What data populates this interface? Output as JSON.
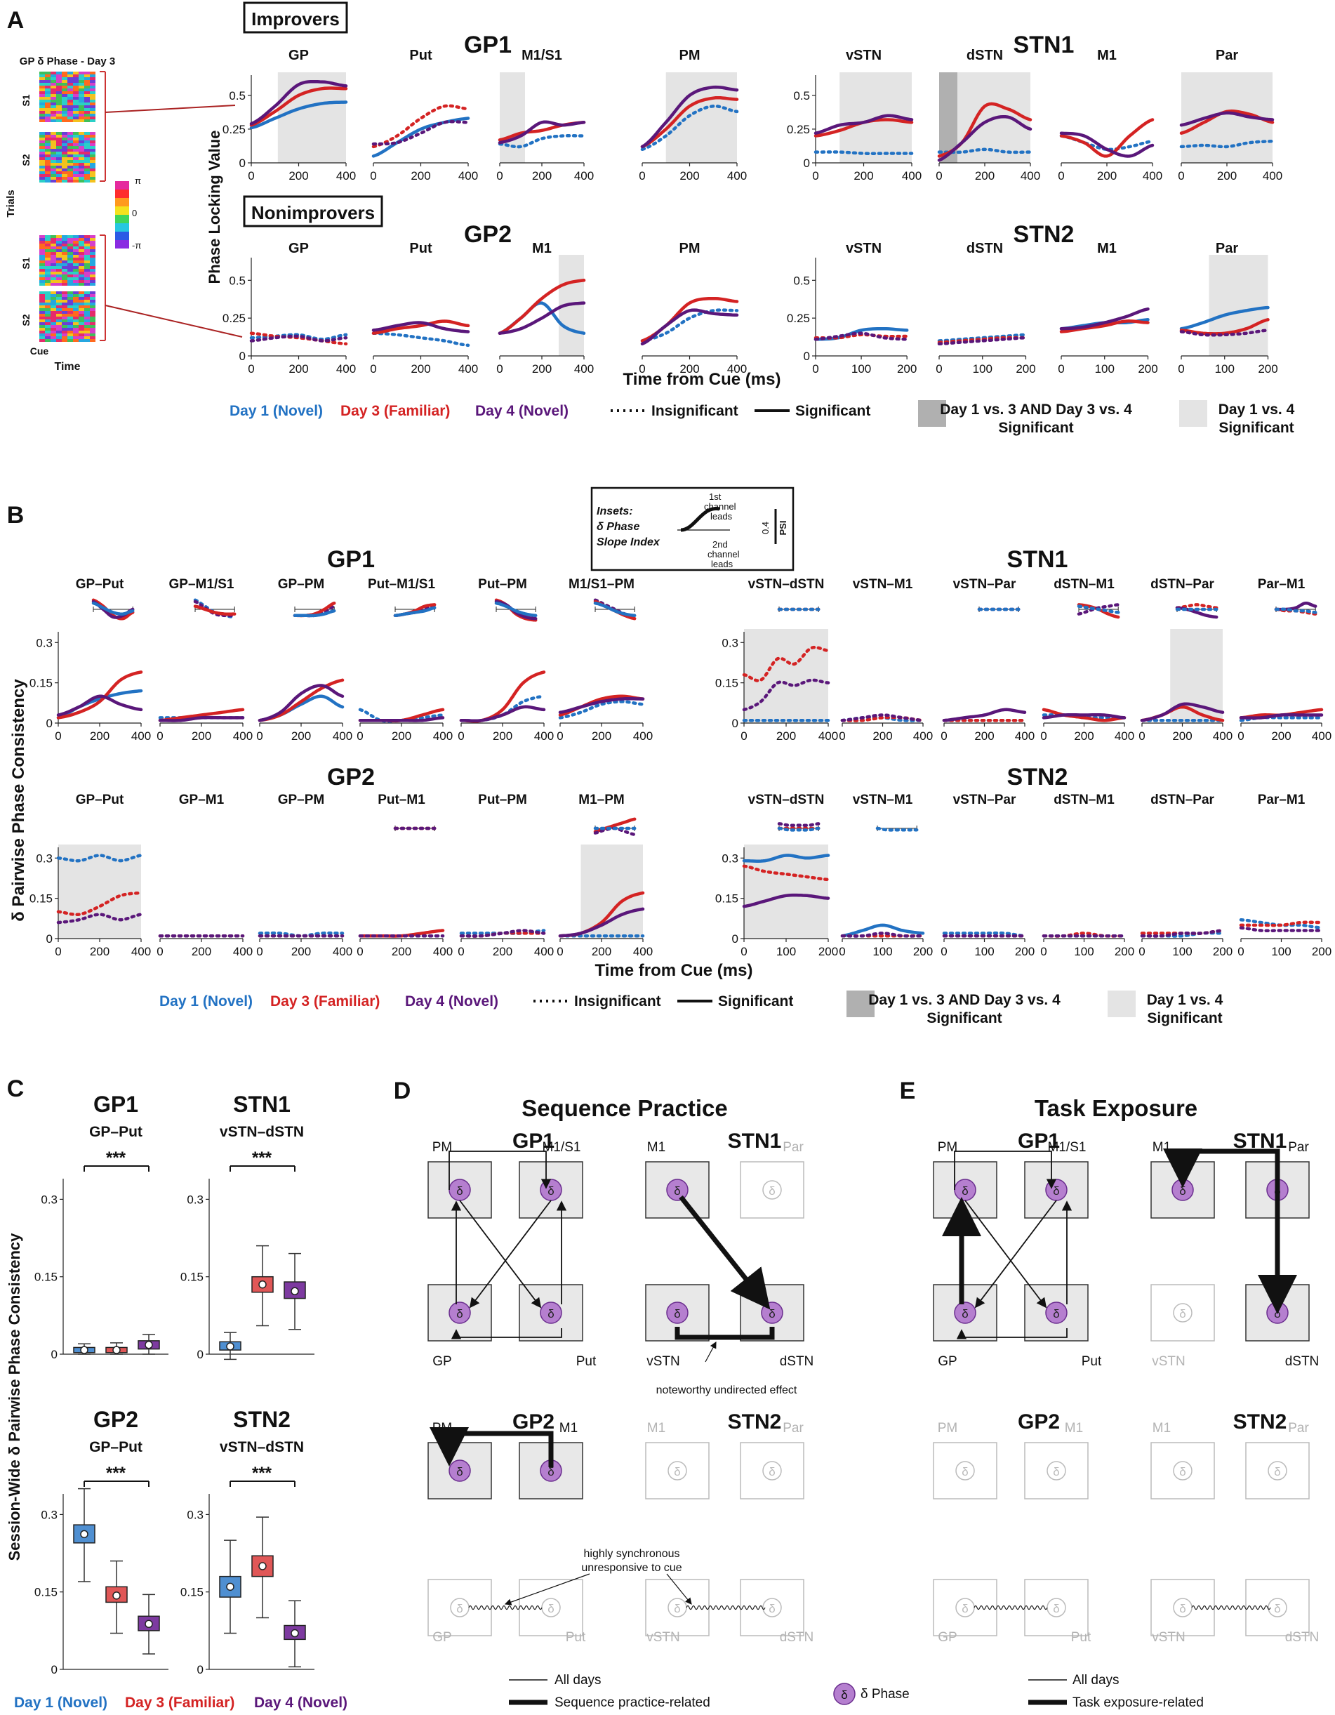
{
  "colors": {
    "day1": "#2272c3",
    "day3": "#d42323",
    "day4": "#5a177a",
    "sig_dark": "#b0b0b0",
    "sig_light": "#e4e4e4",
    "grey_text": "#b3b3b3",
    "node": "#b57fcf"
  },
  "panel_labels": {
    "a": "A",
    "b": "B",
    "c": "C",
    "d": "D",
    "e": "E"
  },
  "legend": {
    "day1": "Day 1 (Novel)",
    "day3": "Day 3 (Familiar)",
    "day4": "Day 4 (Novel)",
    "insig": "Insignificant",
    "sig": "Significant",
    "dark_l1": "Day 1 vs. 3 AND Day 3 vs. 4",
    "dark_l2": "Significant",
    "light_l1": "Day 1 vs. 4",
    "light_l2": "Significant"
  },
  "panelA": {
    "heatmap_title": "GP δ Phase - Day 3",
    "trials_label": "Trials",
    "s1": "S1",
    "s2": "S2",
    "cue": "Cue",
    "time": "Time",
    "cb_top": "π",
    "cb_mid": "0",
    "cb_bot": "-π",
    "improvers": "Improvers",
    "nonimprovers": "Nonimprovers",
    "gp1": "GP1",
    "stn1": "STN1",
    "gp2": "GP2",
    "stn2": "STN2",
    "ylabel": "Phase Locking Value",
    "xlabel": "Time from Cue (ms)",
    "row1": [
      "GP",
      "Put",
      "M1/S1",
      "PM",
      "vSTN",
      "dSTN",
      "M1",
      "Par"
    ],
    "row2": [
      "GP",
      "Put",
      "M1",
      "PM",
      "vSTN",
      "dSTN",
      "M1",
      "Par"
    ],
    "yticks": [
      "0.5",
      "0.25",
      "0"
    ],
    "xticks_gp": [
      "0",
      "200",
      "400"
    ],
    "xticks_stn1": [
      "0",
      "200",
      "400"
    ],
    "xticks_stn2": [
      "0",
      "100",
      "200"
    ]
  },
  "panelB": {
    "gp1": "GP1",
    "stn1": "STN1",
    "gp2": "GP2",
    "stn2": "STN2",
    "ylabel": "δ Pairwise Phase Consistency",
    "xlabel": "Time from Cue (ms)",
    "row1": [
      "GP–Put",
      "GP–M1/S1",
      "GP–PM",
      "Put–M1/S1",
      "Put–PM",
      "M1/S1–PM",
      "vSTN–dSTN",
      "vSTN–M1",
      "vSTN–Par",
      "dSTN–M1",
      "dSTN–Par",
      "Par–M1"
    ],
    "row2": [
      "GP–Put",
      "GP–M1",
      "GP–PM",
      "Put–M1",
      "Put–PM",
      "M1–PM",
      "vSTN–dSTN",
      "vSTN–M1",
      "vSTN–Par",
      "dSTN–M1",
      "dSTN–Par",
      "Par–M1"
    ],
    "yticks": [
      "0.3",
      "0.15",
      "0"
    ],
    "xticks": [
      "0",
      "200",
      "400"
    ],
    "xticks_stn2": [
      "0",
      "100",
      "200"
    ],
    "inset": {
      "l1": "Insets:",
      "l2": "δ Phase",
      "l3": "Slope Index",
      "t1": "1st",
      "t2": "channel",
      "t3": "leads",
      "b1": "2nd",
      "b2": "channel",
      "b3": "leads",
      "val": "0.4",
      "psi": "PSI"
    }
  },
  "panelC": {
    "ylabel": "Session-Wide δ  Pairwise Phase Consistency",
    "gp1": "GP1",
    "stn1": "STN1",
    "gp2": "GP2",
    "stn2": "STN2",
    "pair_gp": "GP–Put",
    "pair_stn": "vSTN–dSTN",
    "sig": "***",
    "yticks": [
      "0.3",
      "0.15",
      "0"
    ]
  },
  "panelD": {
    "title": "Sequence Practice",
    "gp1": "GP1",
    "stn1": "STN1",
    "gp2": "GP2",
    "stn2": "STN2",
    "labels": {
      "pm": "PM",
      "m1s1": "M1/S1",
      "m1": "M1",
      "par": "Par",
      "gp": "GP",
      "put": "Put",
      "vstn": "vSTN",
      "dstn": "dSTN"
    },
    "note": "noteworthy undirected effect",
    "sync1": "highly synchronous",
    "sync2": "unresponsive to cue",
    "node": "δ"
  },
  "panelE": {
    "title": "Task Exposure",
    "gp1": "GP1",
    "stn1": "STN1",
    "gp2": "GP2",
    "stn2": "STN2"
  },
  "bottom_legend": {
    "all_days": "All days",
    "seq": "Sequence practice-related",
    "task": "Task exposure-related",
    "phase": "δ Phase"
  },
  "chart_data": [
    {
      "type": "line",
      "title": "Phase Locking Value (Improvers/Nonimprovers)",
      "xlabel": "Time from Cue (ms)",
      "ylabel": "Phase Locking Value",
      "x": [
        0,
        100,
        200,
        300,
        400
      ],
      "series": [
        {
          "name": "GP1 GP Day 1",
          "values": [
            0.26,
            0.33,
            0.4,
            0.44,
            0.45
          ]
        },
        {
          "name": "GP1 GP Day 3",
          "values": [
            0.28,
            0.38,
            0.5,
            0.55,
            0.55
          ]
        },
        {
          "name": "GP1 GP Day 4",
          "values": [
            0.29,
            0.42,
            0.58,
            0.6,
            0.57
          ]
        }
      ]
    },
    {
      "type": "line",
      "title": "δ Pairwise Phase Consistency",
      "xlabel": "Time from Cue (ms)",
      "ylabel": "δ Pairwise Phase Consistency",
      "x": [
        0,
        100,
        200,
        300,
        400
      ],
      "series": [
        {
          "name": "GP1 GP–Put Day 1",
          "values": [
            0.02,
            0.05,
            0.09,
            0.11,
            0.12
          ]
        },
        {
          "name": "GP1 GP–Put Day 3",
          "values": [
            0.02,
            0.04,
            0.08,
            0.16,
            0.19
          ]
        },
        {
          "name": "GP1 GP–Put Day 4",
          "values": [
            0.03,
            0.06,
            0.1,
            0.07,
            0.05
          ]
        }
      ]
    },
    {
      "type": "box",
      "title": "Session-Wide δ Pairwise Phase Consistency",
      "categories": [
        "Day 1 (Novel)",
        "Day 3 (Familiar)",
        "Day 4 (Novel)"
      ],
      "series": [
        {
          "name": "GP1 GP–Put",
          "medians": [
            0.008,
            0.008,
            0.018
          ]
        },
        {
          "name": "STN1 vSTN–dSTN",
          "medians": [
            0.015,
            0.135,
            0.122
          ]
        },
        {
          "name": "GP2 GP–Put",
          "medians": [
            0.262,
            0.143,
            0.088
          ]
        },
        {
          "name": "STN2 vSTN–dSTN",
          "medians": [
            0.16,
            0.2,
            0.07
          ]
        }
      ]
    }
  ]
}
